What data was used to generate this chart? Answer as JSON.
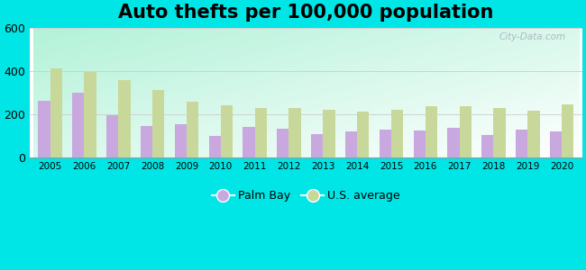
{
  "title": "Auto thefts per 100,000 population",
  "years": [
    2005,
    2006,
    2007,
    2008,
    2009,
    2010,
    2011,
    2012,
    2013,
    2014,
    2015,
    2016,
    2017,
    2018,
    2019,
    2020
  ],
  "palm_bay": [
    265,
    300,
    197,
    148,
    155,
    100,
    143,
    132,
    107,
    122,
    130,
    124,
    138,
    105,
    130,
    122
  ],
  "us_avg": [
    413,
    398,
    358,
    314,
    261,
    242,
    229,
    230,
    221,
    213,
    220,
    238,
    237,
    229,
    219,
    247
  ],
  "palm_bay_color": "#c9a8e0",
  "us_avg_color": "#c8d89a",
  "outer_bg": "#00e5e5",
  "ylim": [
    0,
    600
  ],
  "yticks": [
    0,
    200,
    400,
    600
  ],
  "legend_palm_bay": "Palm Bay",
  "legend_us_avg": "U.S. average",
  "title_fontsize": 15,
  "bar_width": 0.35
}
